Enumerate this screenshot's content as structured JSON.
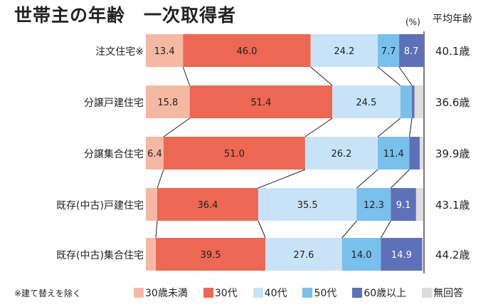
{
  "chart_data": {
    "type": "bar",
    "orientation": "horizontal-stacked",
    "title": "世帯主の年齢　一次取得者",
    "unit": "(%)",
    "avg_header": "平均年齢",
    "footnote": "※建て替えを除く",
    "categories": [
      "注文住宅※",
      "分譲戸建住宅",
      "分譲集合住宅",
      "既存(中古)戸建住宅",
      "既存(中古)集合住宅"
    ],
    "averages": [
      "40.1歳",
      "36.6歳",
      "39.9歳",
      "43.1歳",
      "44.2歳"
    ],
    "series": [
      {
        "name": "30歳未満",
        "color": "#f5b9a3",
        "text": "#222",
        "values": [
          13.4,
          15.8,
          6.4,
          4.1,
          3.6
        ],
        "labeled": [
          true,
          true,
          true,
          false,
          false
        ]
      },
      {
        "name": "30代",
        "color": "#ec6852",
        "text": "#222",
        "values": [
          46.0,
          51.4,
          51.0,
          36.4,
          39.5
        ],
        "labeled": [
          true,
          true,
          true,
          true,
          true
        ]
      },
      {
        "name": "40代",
        "color": "#c8e3f7",
        "text": "#222",
        "values": [
          24.2,
          24.5,
          26.2,
          35.5,
          27.6
        ],
        "labeled": [
          true,
          true,
          true,
          true,
          true
        ]
      },
      {
        "name": "50代",
        "color": "#79c0ec",
        "text": "#222",
        "values": [
          7.7,
          4.2,
          11.4,
          12.3,
          14.0
        ],
        "labeled": [
          true,
          false,
          true,
          true,
          true
        ]
      },
      {
        "name": "60歳以上",
        "color": "#5e70b8",
        "text": "#fff",
        "values": [
          8.7,
          0.9,
          3.7,
          9.1,
          14.9
        ],
        "labeled": [
          true,
          false,
          false,
          true,
          true
        ]
      },
      {
        "name": "無回答",
        "color": "#dddddd",
        "text": "#222",
        "values": [
          0,
          3.2,
          1.3,
          2.6,
          0.4
        ],
        "labeled": [
          false,
          false,
          false,
          false,
          false
        ]
      }
    ],
    "xlim": [
      0,
      100
    ]
  }
}
